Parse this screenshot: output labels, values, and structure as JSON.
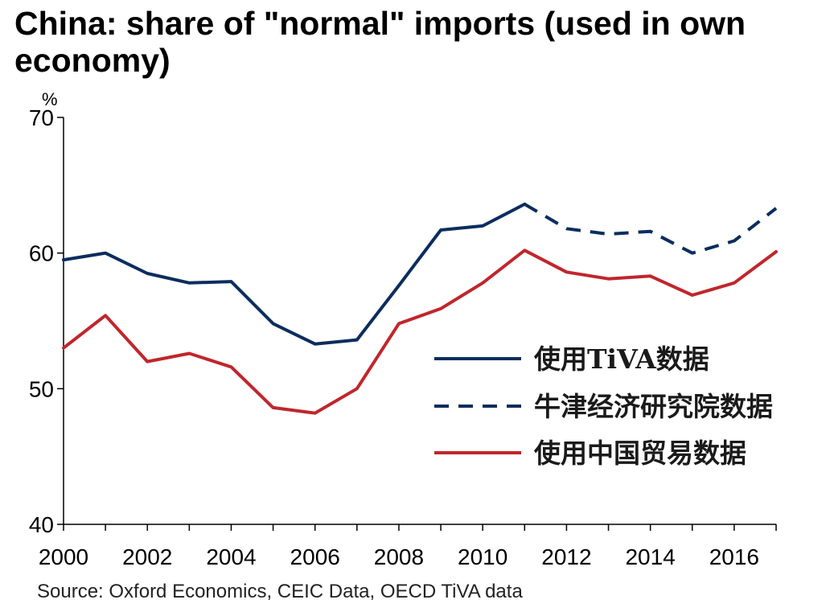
{
  "chart_data": {
    "type": "line",
    "title": "China: share of \"normal\" imports (used in own economy)",
    "y_unit": "%",
    "x": [
      2000,
      2001,
      2002,
      2003,
      2004,
      2005,
      2006,
      2007,
      2008,
      2009,
      2010,
      2011,
      2012,
      2013,
      2014,
      2015,
      2016,
      2017
    ],
    "x_tick_labels": [
      "2000",
      "2002",
      "2004",
      "2006",
      "2008",
      "2010",
      "2012",
      "2014",
      "2016"
    ],
    "y_tick_labels": [
      "70",
      "60",
      "50",
      "40"
    ],
    "xlim": [
      2000,
      2017
    ],
    "ylim": [
      40,
      70
    ],
    "series": [
      {
        "name": "使用TiVA数据",
        "style": "solid",
        "color": "#0b2d5e",
        "x": [
          2000,
          2001,
          2002,
          2003,
          2004,
          2005,
          2006,
          2007,
          2008,
          2009,
          2010,
          2011
        ],
        "values": [
          59.5,
          60.0,
          58.5,
          57.8,
          57.9,
          54.8,
          53.3,
          53.6,
          57.6,
          61.7,
          62.0,
          63.6
        ]
      },
      {
        "name": "牛津经济研究院数据",
        "style": "dashed",
        "color": "#0b2d5e",
        "x": [
          2011,
          2012,
          2013,
          2014,
          2015,
          2016,
          2017
        ],
        "values": [
          63.6,
          61.8,
          61.4,
          61.6,
          60.0,
          60.9,
          63.3
        ]
      },
      {
        "name": "使用中国贸易数据",
        "style": "solid",
        "color": "#c0262c",
        "x": [
          2000,
          2001,
          2002,
          2003,
          2004,
          2005,
          2006,
          2007,
          2008,
          2009,
          2010,
          2011,
          2012,
          2013,
          2014,
          2015,
          2016,
          2017
        ],
        "values": [
          53.0,
          55.4,
          52.0,
          52.6,
          51.6,
          48.6,
          48.2,
          50.0,
          54.8,
          55.9,
          57.8,
          60.2,
          58.6,
          58.1,
          58.3,
          56.9,
          57.8,
          60.1
        ]
      }
    ],
    "grid": false,
    "legend_position": "right-center",
    "source": "Source: Oxford Economics, CEIC Data, OECD TiVA data"
  }
}
